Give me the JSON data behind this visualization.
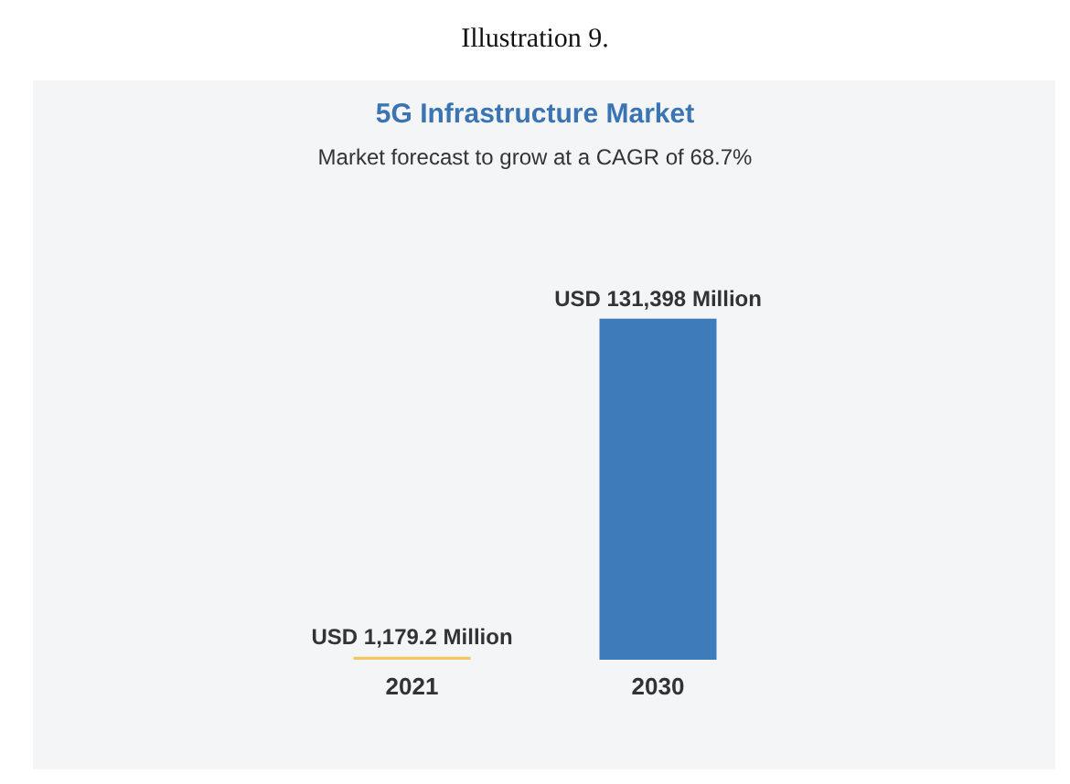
{
  "chart_data": {
    "type": "bar",
    "title": "5G Infrastructure Market",
    "subtitle": "Market forecast to grow at a CAGR of 68.7%",
    "annotations": [
      "Illustration 9."
    ],
    "categories": [
      "2021",
      "2030"
    ],
    "values": [
      1179.2,
      131398
    ],
    "colors": [
      "#f3c563",
      "#3d7bbb"
    ],
    "value_labels": [
      "USD 1,179.2 Million",
      "USD 131,398 Million"
    ]
  }
}
